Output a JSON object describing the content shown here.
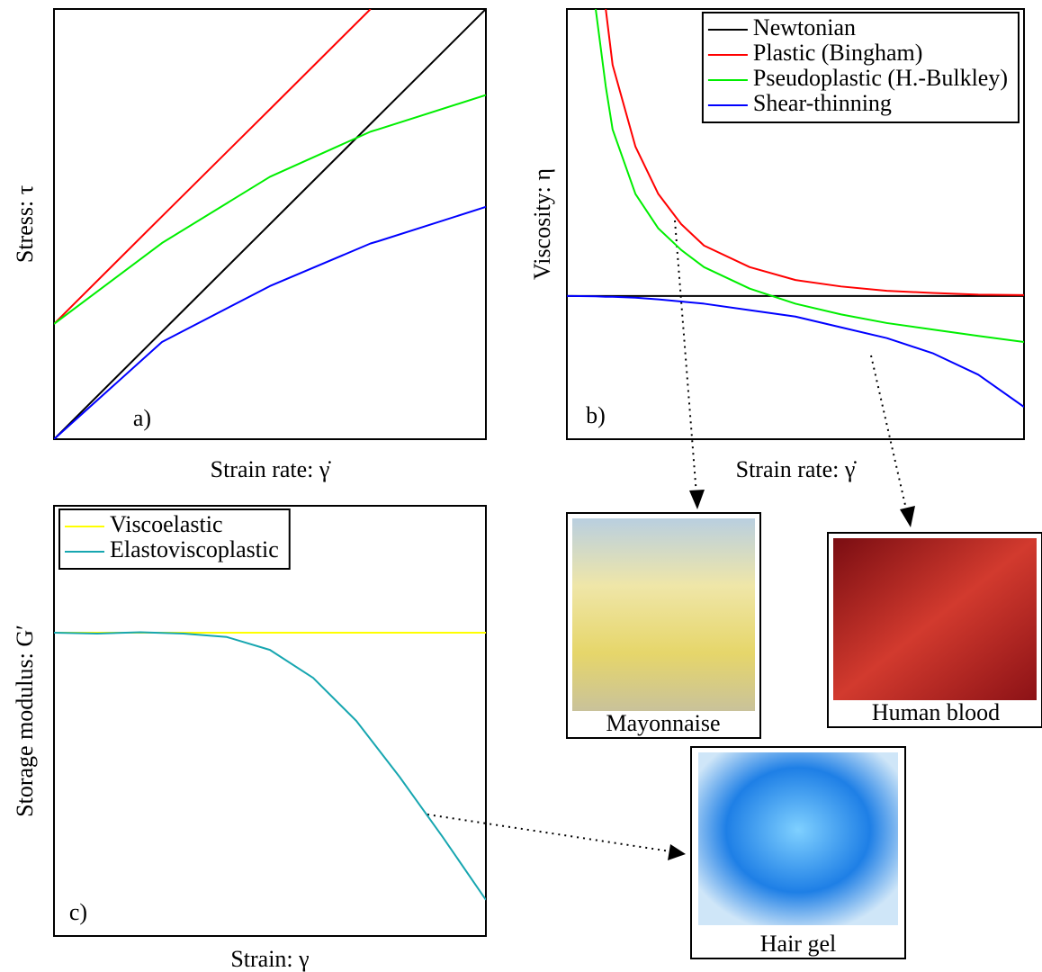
{
  "chart_data": [
    {
      "type": "line",
      "x_label": "Strain rate: γ̇",
      "y_label": "Stress: τ",
      "annotation": "a)",
      "xlim": [
        0,
        1
      ],
      "ylim": [
        0,
        1
      ],
      "x": [
        0,
        0.25,
        0.5,
        0.733,
        0.75,
        1
      ],
      "series": [
        {
          "color": "#000000",
          "values": [
            0,
            0.25,
            0.5,
            0.733,
            0.75,
            1
          ]
        },
        {
          "color": "#ff0000",
          "values": [
            0.268,
            0.518,
            0.767,
            1.0,
            null,
            null
          ]
        },
        {
          "color": "#00ee00",
          "values": [
            0.268,
            0.456,
            0.61,
            0.715,
            0.72,
            0.8
          ]
        },
        {
          "color": "#0000ff",
          "values": [
            0,
            0.226,
            0.356,
            0.455,
            0.46,
            0.54
          ]
        }
      ]
    },
    {
      "type": "line",
      "x_label": "Strain rate: γ̇",
      "y_label": "Viscosity: η",
      "annotation": "b)",
      "xlim": [
        0,
        1
      ],
      "ylim": [
        0,
        1
      ],
      "legend": "upper right",
      "x": [
        0,
        0.063,
        0.085,
        0.1,
        0.15,
        0.2,
        0.25,
        0.3,
        0.4,
        0.5,
        0.6,
        0.7,
        0.8,
        0.9,
        1
      ],
      "series": [
        {
          "name": "Newtonian",
          "color": "#000000",
          "values": [
            0.333,
            0.333,
            0.333,
            0.333,
            0.333,
            0.333,
            0.333,
            0.333,
            0.333,
            0.333,
            0.333,
            0.333,
            0.333,
            0.333,
            0.333
          ]
        },
        {
          "name": "Plastic (Bingham)",
          "color": "#ff0000",
          "values": [
            null,
            null,
            1.0,
            0.87,
            0.68,
            0.57,
            0.5,
            0.45,
            0.4,
            0.37,
            0.355,
            0.345,
            0.34,
            0.336,
            0.335
          ]
        },
        {
          "name": "Pseudoplastic (H.-Bulkley)",
          "color": "#00ee00",
          "values": [
            null,
            1.0,
            0.82,
            0.72,
            0.57,
            0.49,
            0.44,
            0.4,
            0.35,
            0.315,
            0.29,
            0.27,
            0.255,
            0.24,
            0.226
          ]
        },
        {
          "name": "Shear-thinning",
          "color": "#0000ff",
          "values": [
            0.333,
            0.332,
            0.331,
            0.331,
            0.329,
            0.325,
            0.32,
            0.315,
            0.3,
            0.285,
            0.26,
            0.235,
            0.2,
            0.15,
            0.075
          ]
        }
      ]
    },
    {
      "type": "line",
      "x_label": "Strain: γ",
      "y_label": "Storage modulus: G′",
      "annotation": "c)",
      "xlim": [
        0,
        1
      ],
      "ylim": [
        0,
        1
      ],
      "legend": "upper left",
      "x": [
        0,
        0.1,
        0.2,
        0.3,
        0.4,
        0.5,
        0.6,
        0.7,
        0.8,
        0.9,
        1
      ],
      "series": [
        {
          "name": "Viscoelastic",
          "color": "#ffff00",
          "values": [
            0.705,
            0.705,
            0.705,
            0.705,
            0.705,
            0.705,
            0.705,
            0.705,
            0.705,
            0.705,
            0.705
          ]
        },
        {
          "name": "Elastoviscoplastic",
          "color": "#17a6b0",
          "values": [
            0.705,
            0.703,
            0.706,
            0.703,
            0.695,
            0.665,
            0.6,
            0.5,
            0.37,
            0.23,
            0.084
          ]
        }
      ]
    }
  ],
  "photos": [
    "Mayonnaise",
    "Human blood",
    "Hair gel"
  ]
}
